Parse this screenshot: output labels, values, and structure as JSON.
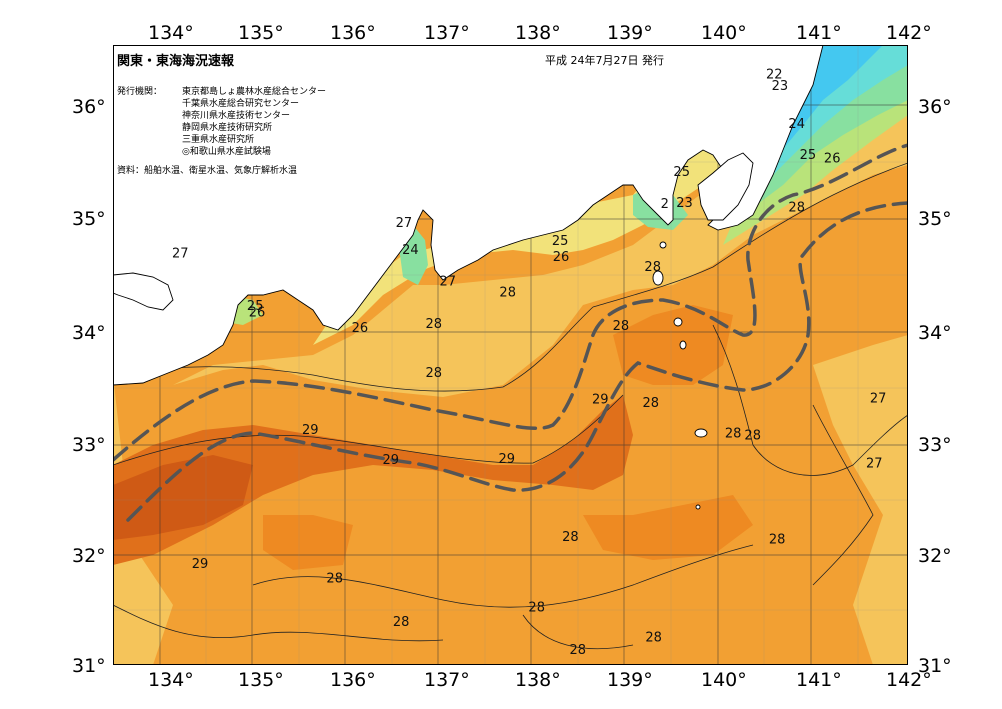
{
  "title": "関東・東海海況速報",
  "issue_date": "平成 24年7月27日 発行",
  "issuer_label": "発行機関：",
  "issuers": [
    "東京都島しょ農林水産総合センター",
    "千葉県水産総合研究センター",
    "神奈川県水産技術センター",
    "静岡県水産技術研究所",
    "三重県水産研究所",
    "◎和歌山県水産試験場"
  ],
  "sources": "資料：船舶水温、衛星水温、気象庁解析水温",
  "lon_ticks": [
    "134°",
    "135°",
    "136°",
    "137°",
    "138°",
    "139°",
    "140°",
    "141°",
    "142°"
  ],
  "lat_ticks": [
    "36°",
    "35°",
    "34°",
    "33°",
    "32°",
    "31°"
  ],
  "colors": {
    "t22": "#44c8f0",
    "t23": "#66ddd8",
    "t24": "#88e0a0",
    "t25": "#b9e37a",
    "t26": "#f2e27a",
    "t27": "#f5c45a",
    "t28": "#f2a033",
    "t28h": "#ee8a22",
    "t29": "#e0701b",
    "t29h": "#cf5a15",
    "land": "#ffffff",
    "kuroshio": "#555555"
  },
  "contour_labels": [
    {
      "t": "22",
      "lon": 140.62,
      "lat": 36.28
    },
    {
      "t": "23",
      "lon": 140.68,
      "lat": 36.18
    },
    {
      "t": "24",
      "lon": 140.86,
      "lat": 35.84
    },
    {
      "t": "25",
      "lon": 140.98,
      "lat": 35.56
    },
    {
      "t": "26",
      "lon": 141.24,
      "lat": 35.53
    },
    {
      "t": "25",
      "lon": 139.63,
      "lat": 35.41
    },
    {
      "t": "2",
      "lon": 139.45,
      "lat": 35.12
    },
    {
      "t": "23",
      "lon": 139.66,
      "lat": 35.13
    },
    {
      "t": "28",
      "lon": 140.86,
      "lat": 35.09
    },
    {
      "t": "27",
      "lon": 136.66,
      "lat": 34.95
    },
    {
      "t": "24",
      "lon": 136.73,
      "lat": 34.71
    },
    {
      "t": "25",
      "lon": 138.33,
      "lat": 34.79
    },
    {
      "t": "26",
      "lon": 138.34,
      "lat": 34.65
    },
    {
      "t": "27",
      "lon": 134.27,
      "lat": 34.68
    },
    {
      "t": "28",
      "lon": 139.32,
      "lat": 34.56
    },
    {
      "t": "27",
      "lon": 137.13,
      "lat": 34.43
    },
    {
      "t": "28",
      "lon": 137.77,
      "lat": 34.33
    },
    {
      "t": "25",
      "lon": 135.07,
      "lat": 34.21
    },
    {
      "t": "26",
      "lon": 135.09,
      "lat": 34.15
    },
    {
      "t": "26",
      "lon": 136.19,
      "lat": 34.01
    },
    {
      "t": "28",
      "lon": 136.98,
      "lat": 34.05
    },
    {
      "t": "28",
      "lon": 138.98,
      "lat": 34.03
    },
    {
      "t": "28",
      "lon": 136.98,
      "lat": 33.61
    },
    {
      "t": "27",
      "lon": 141.73,
      "lat": 33.38
    },
    {
      "t": "29",
      "lon": 138.76,
      "lat": 33.37
    },
    {
      "t": "28",
      "lon": 139.3,
      "lat": 33.34
    },
    {
      "t": "29",
      "lon": 135.66,
      "lat": 33.1
    },
    {
      "t": "28",
      "lon": 140.18,
      "lat": 33.07
    },
    {
      "t": "28",
      "lon": 140.39,
      "lat": 33.05
    },
    {
      "t": "29",
      "lon": 136.52,
      "lat": 32.83
    },
    {
      "t": "29",
      "lon": 137.76,
      "lat": 32.84
    },
    {
      "t": "27",
      "lon": 141.69,
      "lat": 32.8
    },
    {
      "t": "28",
      "lon": 138.44,
      "lat": 32.14
    },
    {
      "t": "28",
      "lon": 140.65,
      "lat": 32.12
    },
    {
      "t": "29",
      "lon": 134.48,
      "lat": 31.9
    },
    {
      "t": "28",
      "lon": 135.92,
      "lat": 31.77
    },
    {
      "t": "28",
      "lon": 138.08,
      "lat": 31.51
    },
    {
      "t": "28",
      "lon": 136.63,
      "lat": 31.38
    },
    {
      "t": "28",
      "lon": 139.33,
      "lat": 31.24
    },
    {
      "t": "28",
      "lon": 138.52,
      "lat": 31.13
    }
  ]
}
